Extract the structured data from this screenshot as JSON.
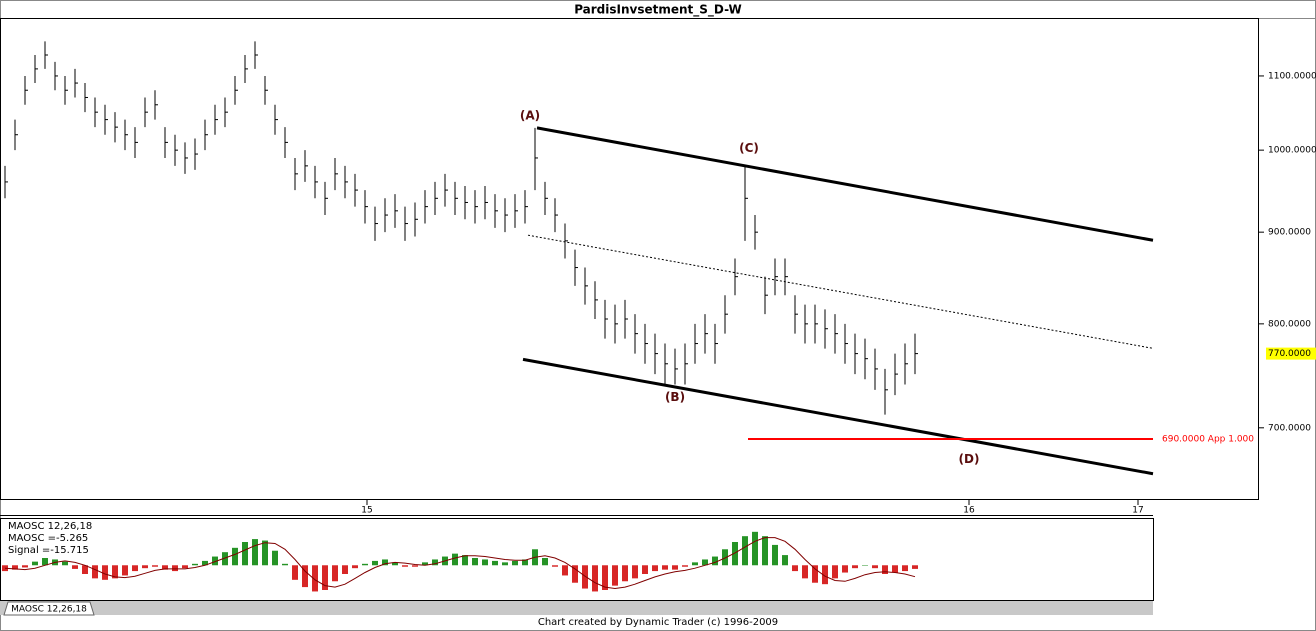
{
  "chart_data": [
    {
      "type": "ohlc",
      "title": "PardisInvsetment_S_D-W",
      "log_scale": true,
      "color": "#000000",
      "xlim": [
        0,
        503.2
      ],
      "ylim": [
        638,
        1185
      ],
      "xticks": [
        {
          "value": 146.8,
          "label": "15"
        },
        {
          "value": 387.6,
          "label": "16"
        },
        {
          "value": 455.2,
          "label": "17"
        }
      ],
      "yticks": [
        {
          "value": 700,
          "label": "700.0000"
        },
        {
          "value": 800,
          "label": "800.0000"
        },
        {
          "value": 900,
          "label": "900.0000"
        },
        {
          "value": 1000,
          "label": "1000.0000"
        },
        {
          "value": 1100,
          "label": "1100.0000"
        }
      ],
      "x": [
        2,
        6,
        10,
        14,
        18,
        22,
        26,
        30,
        34,
        38,
        42,
        46,
        50,
        54,
        58,
        62,
        66,
        70,
        74,
        78,
        82,
        86,
        90,
        94,
        98,
        102,
        106,
        110,
        114,
        118,
        122,
        126,
        130,
        134,
        138,
        142,
        146,
        150,
        154,
        158,
        162,
        166,
        170,
        174,
        178,
        182,
        186,
        190,
        194,
        198,
        202,
        206,
        210,
        214,
        218,
        222,
        226,
        230,
        234,
        238,
        242,
        246,
        250,
        254,
        258,
        262,
        266,
        270,
        274,
        278,
        282,
        286,
        290,
        294,
        298,
        302,
        306,
        310,
        314,
        318,
        322,
        326,
        330,
        334,
        338,
        342,
        346,
        350,
        354,
        358,
        362,
        366
      ],
      "high": [
        980,
        1040,
        1100,
        1130,
        1150,
        1120,
        1100,
        1110,
        1090,
        1070,
        1060,
        1050,
        1040,
        1030,
        1070,
        1080,
        1030,
        1020,
        1010,
        1015,
        1040,
        1060,
        1070,
        1100,
        1130,
        1150,
        1100,
        1060,
        1030,
        990,
        1000,
        980,
        960,
        990,
        980,
        970,
        950,
        930,
        940,
        945,
        930,
        935,
        950,
        960,
        970,
        960,
        955,
        950,
        955,
        945,
        940,
        945,
        950,
        1029,
        960,
        940,
        910,
        880,
        860,
        845,
        825,
        820,
        825,
        810,
        800,
        790,
        780,
        775,
        780,
        800,
        810,
        800,
        830,
        870,
        980,
        920,
        850,
        870,
        870,
        830,
        820,
        820,
        815,
        810,
        800,
        790,
        785,
        775,
        755,
        770,
        780,
        790
      ],
      "low": [
        940,
        1000,
        1060,
        1090,
        1110,
        1080,
        1060,
        1070,
        1050,
        1030,
        1020,
        1010,
        1000,
        990,
        1030,
        1040,
        990,
        980,
        970,
        975,
        1000,
        1020,
        1030,
        1060,
        1090,
        1110,
        1060,
        1020,
        990,
        950,
        960,
        940,
        920,
        950,
        940,
        930,
        910,
        890,
        900,
        905,
        890,
        895,
        910,
        920,
        930,
        920,
        915,
        910,
        915,
        905,
        900,
        905,
        910,
        950,
        920,
        900,
        870,
        840,
        820,
        805,
        785,
        780,
        785,
        770,
        760,
        750,
        740,
        740,
        740,
        760,
        770,
        760,
        790,
        830,
        890,
        880,
        810,
        830,
        830,
        790,
        780,
        780,
        775,
        770,
        760,
        750,
        745,
        735,
        712,
        730,
        740,
        750
      ],
      "close": [
        960,
        1020,
        1080,
        1110,
        1130,
        1100,
        1080,
        1090,
        1070,
        1050,
        1040,
        1030,
        1020,
        1010,
        1050,
        1060,
        1010,
        1000,
        990,
        995,
        1020,
        1040,
        1050,
        1080,
        1110,
        1130,
        1080,
        1040,
        1010,
        970,
        980,
        960,
        940,
        970,
        960,
        950,
        930,
        910,
        920,
        925,
        910,
        915,
        930,
        940,
        950,
        940,
        935,
        930,
        935,
        925,
        920,
        925,
        930,
        990,
        940,
        920,
        890,
        860,
        840,
        825,
        805,
        800,
        805,
        790,
        780,
        770,
        760,
        755,
        760,
        780,
        790,
        780,
        810,
        850,
        940,
        900,
        830,
        850,
        850,
        810,
        800,
        800,
        795,
        790,
        780,
        770,
        765,
        755,
        735,
        750,
        760,
        770
      ],
      "last_price": {
        "value": 770,
        "label": "770.0000",
        "color": "#ffff00"
      },
      "trendlines": [
        {
          "x": [
            214.8,
            461.2
          ],
          "y": [
            1029,
            890.7
          ],
          "style": "solid",
          "color": "#000000"
        },
        {
          "x": [
            209.2,
            461.2
          ],
          "y": [
            764.3,
            659.9
          ],
          "style": "solid",
          "color": "#000000"
        },
        {
          "x": [
            211.2,
            461.2
          ],
          "y": [
            896.5,
            775.2
          ],
          "style": "dotted",
          "color": "#000000"
        }
      ],
      "target": {
        "value": 690,
        "label": "690.0000 App 1.000",
        "x": [
          299.2,
          461.2
        ],
        "color": "#ff0000"
      },
      "annotations": [
        {
          "text": "(A)",
          "x": 212,
          "y": 1045
        },
        {
          "text": "(B)",
          "x": 270,
          "y": 728
        },
        {
          "text": "(C)",
          "x": 299.6,
          "y": 1002
        },
        {
          "text": "(D)",
          "x": 387.6,
          "y": 672
        }
      ],
      "footer": "Chart created by Dynamic Trader  (c) 1996-2009"
    },
    {
      "type": "oscillator",
      "legend_title": "MAOSC 12,26,18",
      "legend_lines": [
        "MAOSC =-5.265",
        "Signal =-15.715"
      ],
      "tab": "MAOSC 12,26,18",
      "xlim": [
        0,
        461.2
      ],
      "ylim": [
        -45,
        65
      ],
      "positive_color": "#008000",
      "negative_color": "#d00000",
      "line_color": "#800000",
      "x": [
        2,
        6,
        10,
        14,
        18,
        22,
        26,
        30,
        34,
        38,
        42,
        46,
        50,
        54,
        58,
        62,
        66,
        70,
        74,
        78,
        82,
        86,
        90,
        94,
        98,
        102,
        106,
        110,
        114,
        118,
        122,
        126,
        130,
        134,
        138,
        142,
        146,
        150,
        154,
        158,
        162,
        166,
        170,
        174,
        178,
        182,
        186,
        190,
        194,
        198,
        202,
        206,
        210,
        214,
        218,
        222,
        226,
        230,
        234,
        238,
        242,
        246,
        250,
        254,
        258,
        262,
        266,
        270,
        274,
        278,
        282,
        286,
        290,
        294,
        298,
        302,
        306,
        310,
        314,
        318,
        322,
        326,
        330,
        334,
        338,
        342,
        346,
        350,
        354,
        358,
        362,
        366
      ],
      "histogram": [
        -8,
        -6,
        -3,
        5,
        10,
        8,
        5,
        -5,
        -12,
        -18,
        -20,
        -18,
        -14,
        -8,
        -4,
        -2,
        -6,
        -8,
        -4,
        2,
        6,
        12,
        18,
        24,
        32,
        36,
        34,
        20,
        2,
        -20,
        -30,
        -36,
        -34,
        -22,
        -12,
        -4,
        2,
        6,
        8,
        4,
        -2,
        -2,
        4,
        8,
        12,
        16,
        14,
        10,
        8,
        6,
        4,
        6,
        8,
        22,
        10,
        -2,
        -14,
        -24,
        -32,
        -36,
        -34,
        -28,
        -22,
        -18,
        -12,
        -8,
        -6,
        -6,
        -2,
        4,
        8,
        12,
        22,
        32,
        40,
        46,
        40,
        28,
        14,
        -8,
        -18,
        -24,
        -26,
        -18,
        -10,
        -4,
        0,
        -4,
        -12,
        -10,
        -8,
        -5
      ],
      "signal": [
        -4,
        -5,
        -6,
        -4,
        0,
        4,
        6,
        4,
        0,
        -6,
        -12,
        -16,
        -17,
        -15,
        -11,
        -7,
        -5,
        -5,
        -5,
        -3,
        0,
        5,
        10,
        15,
        21,
        27,
        31,
        30,
        22,
        8,
        -8,
        -20,
        -28,
        -30,
        -26,
        -18,
        -10,
        -3,
        2,
        4,
        3,
        1,
        0,
        2,
        6,
        10,
        13,
        13,
        12,
        10,
        8,
        7,
        7,
        11,
        13,
        10,
        4,
        -5,
        -15,
        -24,
        -30,
        -32,
        -30,
        -26,
        -21,
        -16,
        -12,
        -9,
        -7,
        -4,
        0,
        4,
        10,
        17,
        25,
        33,
        38,
        38,
        33,
        22,
        8,
        -5,
        -15,
        -21,
        -22,
        -18,
        -13,
        -10,
        -9,
        -10,
        -12,
        -15.715
      ]
    }
  ]
}
